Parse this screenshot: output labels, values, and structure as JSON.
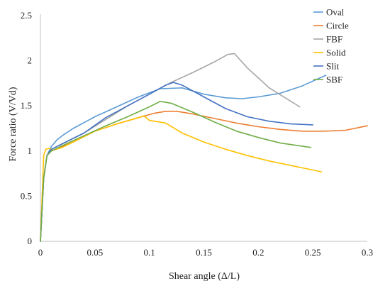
{
  "chart_data": {
    "type": "line",
    "title": "",
    "xlabel": "Shear angle (Δ/L)",
    "ylabel": "Force ratio (V/Vd)",
    "xlim": [
      0,
      0.3
    ],
    "ylim": [
      0,
      2.5
    ],
    "xticks": [
      0,
      0.05,
      0.1,
      0.15,
      0.2,
      0.25,
      0.3
    ],
    "xtick_labels": [
      "0",
      "0.05",
      "0.1",
      "0.15",
      "0.2",
      "0.25",
      "0.3"
    ],
    "yticks": [
      0,
      0.5,
      1,
      1.5,
      2,
      2.5
    ],
    "ytick_labels": [
      "0",
      "0.5",
      "1",
      "1.5",
      "2",
      "2.5"
    ],
    "grid": false,
    "legend_position": "top-right",
    "series": [
      {
        "name": "Oval",
        "color": "#5b9bd5",
        "x": [
          0,
          0.003,
          0.006,
          0.01,
          0.015,
          0.02,
          0.03,
          0.05,
          0.07,
          0.09,
          0.11,
          0.13,
          0.15,
          0.17,
          0.185,
          0.2,
          0.22,
          0.24,
          0.262
        ],
        "y": [
          0,
          0.7,
          0.95,
          1.05,
          1.12,
          1.17,
          1.25,
          1.38,
          1.49,
          1.6,
          1.69,
          1.7,
          1.63,
          1.59,
          1.58,
          1.6,
          1.64,
          1.72,
          1.84
        ]
      },
      {
        "name": "Circle",
        "color": "#ed7d31",
        "x": [
          0,
          0.003,
          0.006,
          0.01,
          0.02,
          0.03,
          0.05,
          0.07,
          0.09,
          0.105,
          0.115,
          0.125,
          0.14,
          0.16,
          0.18,
          0.2,
          0.22,
          0.24,
          0.26,
          0.28,
          0.3
        ],
        "y": [
          0,
          0.7,
          0.95,
          1.0,
          1.05,
          1.1,
          1.22,
          1.3,
          1.37,
          1.42,
          1.44,
          1.44,
          1.41,
          1.36,
          1.31,
          1.27,
          1.24,
          1.22,
          1.22,
          1.23,
          1.28
        ]
      },
      {
        "name": "FBF",
        "color": "#a5a5a5",
        "x": [
          0,
          0.003,
          0.006,
          0.01,
          0.02,
          0.04,
          0.06,
          0.08,
          0.1,
          0.12,
          0.14,
          0.16,
          0.172,
          0.178,
          0.19,
          0.21,
          0.238
        ],
        "y": [
          0,
          0.7,
          0.95,
          1.02,
          1.08,
          1.2,
          1.35,
          1.5,
          1.63,
          1.76,
          1.87,
          1.99,
          2.07,
          2.08,
          1.92,
          1.7,
          1.49
        ]
      },
      {
        "name": "Solid",
        "color": "#ffc000",
        "x": [
          0,
          0.003,
          0.005,
          0.008,
          0.012,
          0.02,
          0.03,
          0.05,
          0.07,
          0.09,
          0.095,
          0.1,
          0.105,
          0.115,
          0.13,
          0.15,
          0.17,
          0.19,
          0.21,
          0.23,
          0.25,
          0.258
        ],
        "y": [
          0,
          0.95,
          1.02,
          1.03,
          1.01,
          1.04,
          1.1,
          1.22,
          1.3,
          1.37,
          1.39,
          1.34,
          1.33,
          1.31,
          1.2,
          1.1,
          1.02,
          0.95,
          0.89,
          0.84,
          0.79,
          0.77
        ]
      },
      {
        "name": "Slit",
        "color": "#4472c4",
        "x": [
          0,
          0.003,
          0.006,
          0.01,
          0.02,
          0.04,
          0.06,
          0.08,
          0.1,
          0.115,
          0.122,
          0.13,
          0.15,
          0.17,
          0.19,
          0.21,
          0.23,
          0.25
        ],
        "y": [
          0,
          0.7,
          0.95,
          1.02,
          1.08,
          1.2,
          1.37,
          1.5,
          1.63,
          1.73,
          1.76,
          1.73,
          1.6,
          1.47,
          1.38,
          1.33,
          1.3,
          1.29
        ]
      },
      {
        "name": "SBF",
        "color": "#70ad47",
        "x": [
          0,
          0.003,
          0.006,
          0.01,
          0.02,
          0.04,
          0.06,
          0.08,
          0.1,
          0.11,
          0.12,
          0.14,
          0.16,
          0.18,
          0.2,
          0.22,
          0.248
        ],
        "y": [
          0,
          0.7,
          0.95,
          1.0,
          1.06,
          1.17,
          1.28,
          1.38,
          1.49,
          1.55,
          1.53,
          1.43,
          1.32,
          1.22,
          1.15,
          1.09,
          1.04
        ]
      }
    ]
  }
}
